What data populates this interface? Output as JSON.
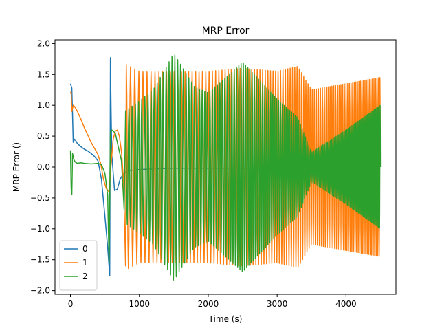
{
  "chart_data": {
    "type": "line",
    "title": "MRP Error",
    "xlabel": "Time (s)",
    "ylabel": "MRP Error ()",
    "xlim": [
      -225,
      4725
    ],
    "ylim": [
      -2.06,
      2.06
    ],
    "xticks": [
      0,
      1000,
      2000,
      3000,
      4000
    ],
    "xtick_labels": [
      "0",
      "1000",
      "2000",
      "3000",
      "4000"
    ],
    "yticks": [
      -2.0,
      -1.5,
      -1.0,
      -0.5,
      0.0,
      0.5,
      1.0,
      1.5,
      2.0
    ],
    "ytick_labels": [
      "−2.0",
      "−1.5",
      "−1.0",
      "−0.5",
      "0.0",
      "0.5",
      "1.0",
      "1.5",
      "2.0"
    ],
    "grid": false,
    "legend_position": "lower-left",
    "series": [
      {
        "name": "0",
        "color": "#1f77b4",
        "x": [
          0,
          20,
          40,
          60,
          80,
          100,
          150,
          200,
          250,
          300,
          350,
          400,
          450,
          500,
          540,
          570,
          580,
          590,
          600,
          640,
          680,
          720,
          760,
          800,
          850,
          900,
          1000,
          1200,
          1500,
          2000,
          2500,
          3000,
          3500,
          4000,
          4500
        ],
        "y": [
          1.35,
          1.28,
          0.4,
          0.45,
          0.42,
          0.38,
          0.33,
          0.29,
          0.26,
          0.22,
          0.17,
          0.1,
          -0.2,
          -0.8,
          -1.3,
          -1.76,
          1.77,
          0.9,
          0.2,
          -0.38,
          -0.36,
          -0.2,
          -0.12,
          -0.08,
          -0.06,
          -0.05,
          -0.04,
          -0.03,
          -0.02,
          -0.02,
          -0.02,
          -0.02,
          -0.02,
          -0.02,
          -0.02
        ]
      },
      {
        "name": "1",
        "color": "#ff7f0e",
        "x": [
          0,
          10,
          20,
          40,
          60,
          100,
          150,
          200,
          250,
          300,
          350,
          400,
          440,
          480,
          520,
          560,
          590,
          620,
          650,
          680,
          710,
          740,
          770,
          800,
          810,
          1000,
          1500,
          2000,
          2500,
          3000,
          3300,
          3500,
          4000,
          4500
        ],
        "y": [
          1.2,
          1.22,
          0.9,
          1.0,
          0.98,
          0.9,
          0.78,
          0.64,
          0.52,
          0.4,
          0.3,
          0.2,
          0.05,
          -0.2,
          -0.35,
          -0.4,
          0.05,
          0.45,
          0.58,
          0.6,
          0.5,
          0.25,
          -0.2,
          -1.6,
          1.66,
          1.55,
          1.55,
          1.55,
          1.6,
          1.55,
          1.63,
          1.25,
          1.35,
          1.45
        ],
        "amplitude": [
          0,
          0,
          0,
          0,
          0,
          0,
          0,
          0,
          0,
          0,
          0,
          0,
          0,
          0,
          0,
          0,
          0,
          0,
          0,
          0,
          0,
          0,
          0,
          0,
          1.66,
          1.55,
          1.55,
          1.55,
          1.6,
          1.55,
          1.63,
          1.25,
          1.35,
          1.45
        ]
      },
      {
        "name": "2",
        "color": "#2ca02c",
        "x": [
          0,
          10,
          20,
          30,
          50,
          70,
          100,
          150,
          200,
          300,
          400,
          450,
          500,
          540,
          560,
          580,
          600,
          650,
          700,
          740,
          780,
          800,
          1000,
          1200,
          1500,
          1800,
          2000,
          2500,
          3000,
          3300,
          3500,
          4000,
          4500
        ],
        "y": [
          0.27,
          -0.35,
          -0.45,
          0.22,
          0.12,
          0.08,
          0.06,
          0.07,
          0.06,
          0.05,
          0.06,
          0.04,
          -0.1,
          -0.45,
          -1.55,
          0.57,
          0.6,
          0.55,
          0.3,
          0.1,
          -0.7,
          0.91,
          1.07,
          1.25,
          1.84,
          1.3,
          1.2,
          1.7,
          1.1,
          0.8,
          0.24,
          0.6,
          1.0
        ],
        "amplitude": [
          0,
          0,
          0,
          0,
          0,
          0,
          0,
          0,
          0,
          0,
          0,
          0,
          0,
          0,
          0,
          0,
          0,
          0,
          0,
          0,
          0,
          0.91,
          1.07,
          1.25,
          1.84,
          1.3,
          1.2,
          1.7,
          1.1,
          0.8,
          0.24,
          0.6,
          1.0
        ]
      }
    ]
  }
}
